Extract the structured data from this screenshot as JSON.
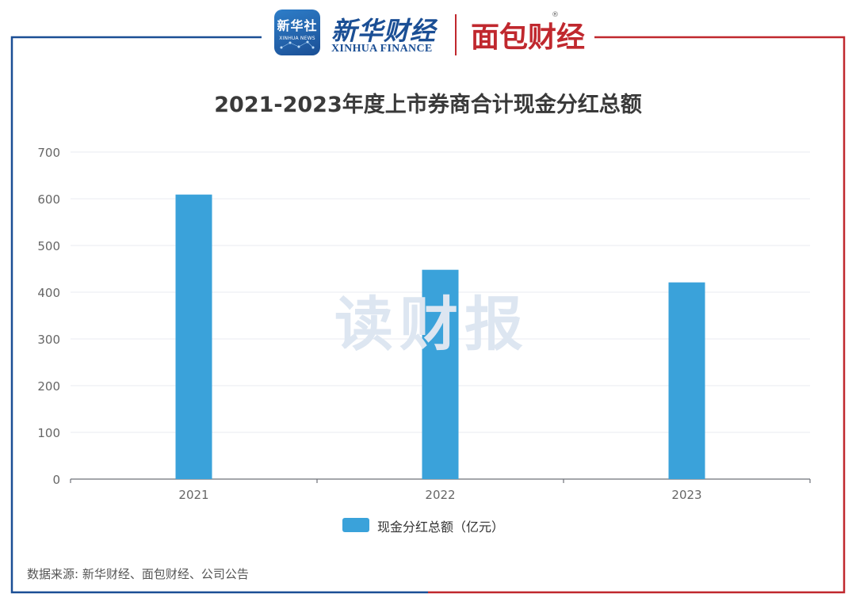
{
  "header": {
    "xinhua_badge": "新华社",
    "xinhua_badge_sub": "XINHUA NEWS",
    "xinhua_cn": "新华财经",
    "xinhua_en": "XINHUA FINANCE",
    "mianbao_logo": "面包财经",
    "mianbao_reg": "®"
  },
  "colors": {
    "bar": "#3aa2da",
    "frame_left": "#1b4f95",
    "frame_right": "#c0282e",
    "grid": "#e8ebf0",
    "axis": "#6e7079"
  },
  "watermark": "读财报",
  "chart_data": {
    "type": "bar",
    "title": "2021-2023年度上市券商合计现金分红总额",
    "categories": [
      "2021",
      "2022",
      "2023"
    ],
    "series": [
      {
        "name": "现金分红总额（亿元）",
        "values": [
          609,
          448,
          421
        ]
      }
    ],
    "ylim": [
      0,
      700
    ],
    "yticks": [
      "0",
      "100",
      "200",
      "300",
      "400",
      "500",
      "600",
      "700"
    ],
    "grid": true,
    "legend_position": "bottom-center"
  },
  "source": "数据来源: 新华财经、面包财经、公司公告"
}
